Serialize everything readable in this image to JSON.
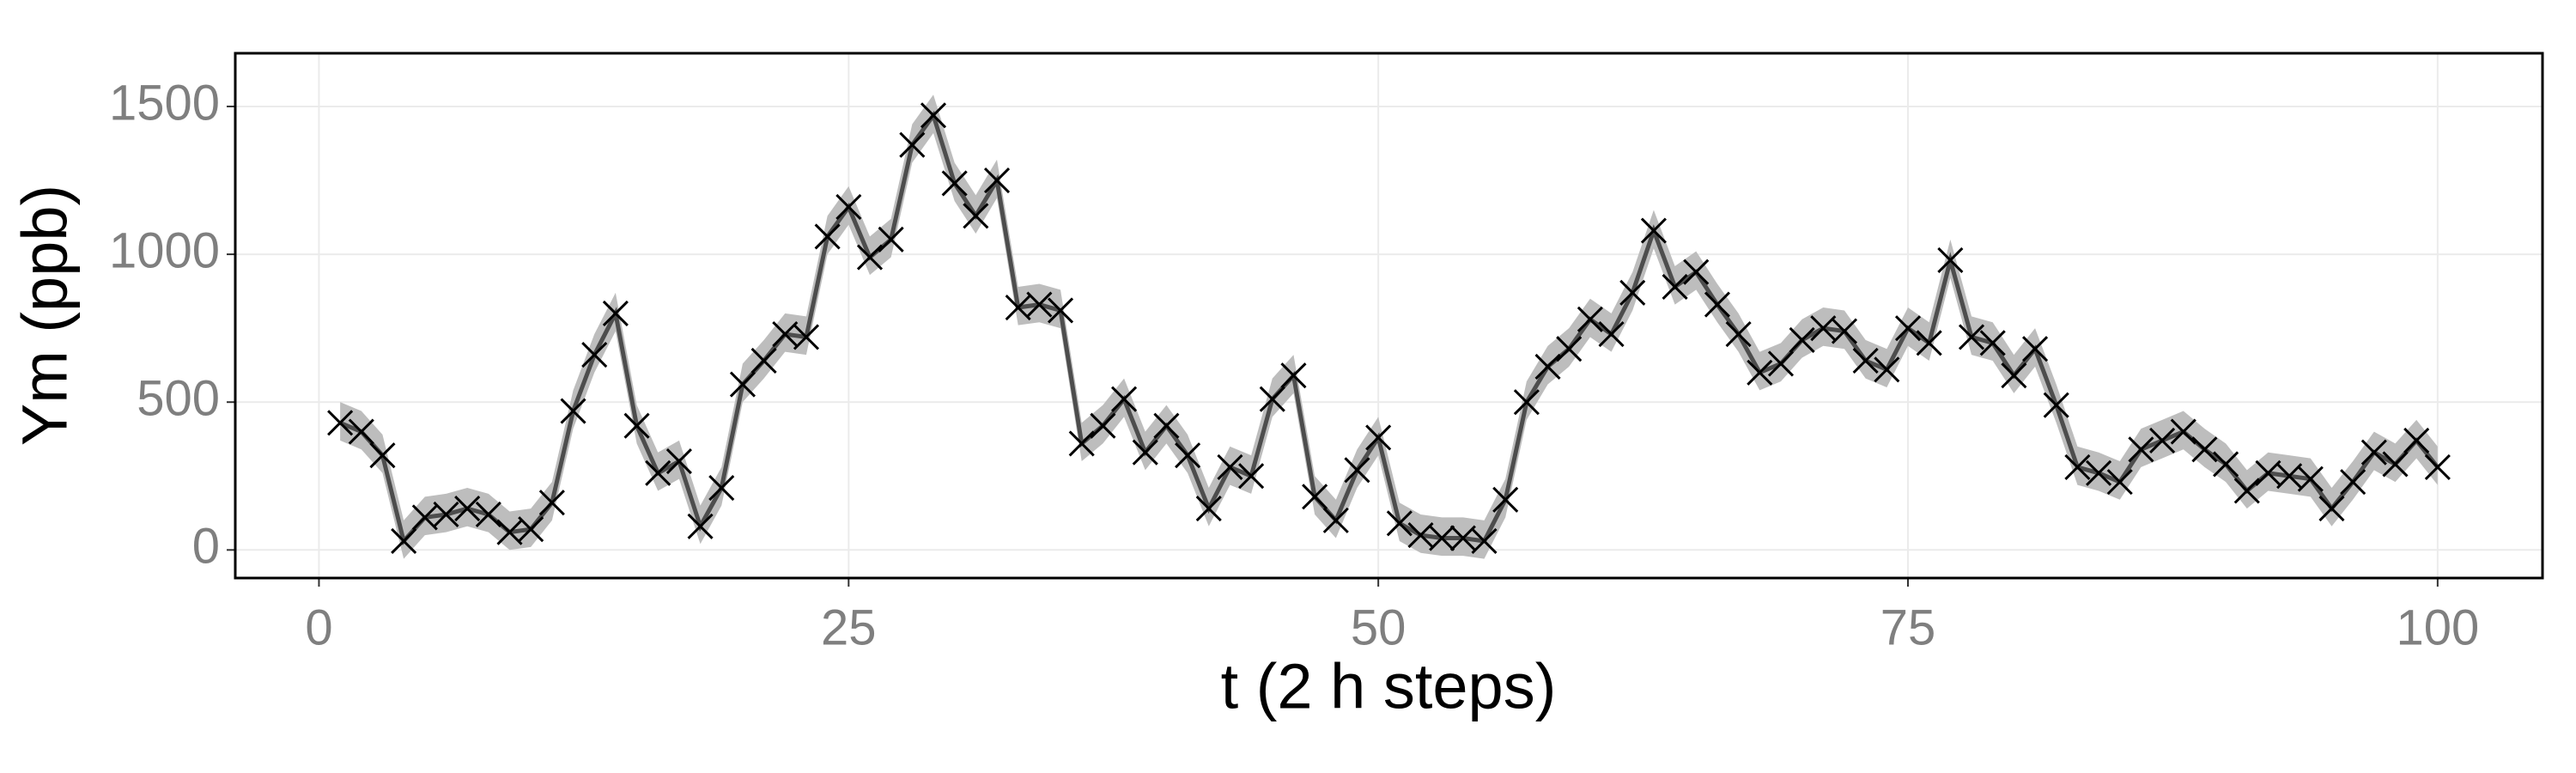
{
  "chart_data": {
    "type": "line",
    "x_label": "t (2 h steps)",
    "y_label": "Ym (ppb)",
    "x": [
      1,
      2,
      3,
      4,
      5,
      6,
      7,
      8,
      9,
      10,
      11,
      12,
      13,
      14,
      15,
      16,
      17,
      18,
      19,
      20,
      21,
      22,
      23,
      24,
      25,
      26,
      27,
      28,
      29,
      30,
      31,
      32,
      33,
      34,
      35,
      36,
      37,
      38,
      39,
      40,
      41,
      42,
      43,
      44,
      45,
      46,
      47,
      48,
      49,
      50,
      51,
      52,
      53,
      54,
      55,
      56,
      57,
      58,
      59,
      60,
      61,
      62,
      63,
      64,
      65,
      66,
      67,
      68,
      69,
      70,
      71,
      72,
      73,
      74,
      75,
      76,
      77,
      78,
      79,
      80,
      81,
      82,
      83,
      84,
      85,
      86,
      87,
      88,
      89,
      90,
      91,
      92,
      93,
      94,
      95,
      96,
      97,
      98,
      99,
      100
    ],
    "values": [
      430,
      400,
      320,
      30,
      110,
      120,
      140,
      120,
      60,
      70,
      160,
      470,
      660,
      800,
      420,
      260,
      300,
      80,
      210,
      560,
      640,
      730,
      720,
      1060,
      1160,
      990,
      1050,
      1370,
      1470,
      1240,
      1130,
      1250,
      820,
      830,
      810,
      360,
      420,
      510,
      330,
      420,
      320,
      140,
      280,
      250,
      510,
      590,
      180,
      100,
      270,
      380,
      90,
      50,
      40,
      40,
      30,
      170,
      500,
      620,
      680,
      780,
      730,
      870,
      1080,
      890,
      940,
      830,
      730,
      600,
      630,
      710,
      750,
      740,
      640,
      610,
      750,
      700,
      980,
      720,
      700,
      590,
      680,
      490,
      280,
      260,
      230,
      340,
      370,
      400,
      340,
      290,
      200,
      260,
      250,
      240,
      140,
      230,
      330,
      290,
      370,
      280
    ],
    "lower": [
      370,
      340,
      260,
      -30,
      50,
      60,
      80,
      60,
      0,
      10,
      100,
      410,
      600,
      740,
      360,
      200,
      240,
      20,
      150,
      500,
      580,
      670,
      660,
      1000,
      1100,
      930,
      990,
      1310,
      1410,
      1180,
      1070,
      1190,
      760,
      770,
      750,
      300,
      360,
      450,
      270,
      360,
      260,
      80,
      220,
      190,
      450,
      530,
      120,
      40,
      210,
      320,
      30,
      -10,
      -20,
      -20,
      -30,
      110,
      440,
      560,
      620,
      720,
      670,
      810,
      1020,
      830,
      880,
      770,
      670,
      540,
      570,
      650,
      690,
      680,
      580,
      550,
      690,
      640,
      920,
      660,
      640,
      530,
      620,
      430,
      220,
      200,
      170,
      280,
      310,
      340,
      280,
      230,
      140,
      200,
      190,
      180,
      80,
      170,
      270,
      230,
      310,
      220
    ],
    "upper": [
      500,
      470,
      390,
      100,
      180,
      190,
      210,
      190,
      130,
      140,
      230,
      540,
      730,
      870,
      490,
      330,
      370,
      150,
      280,
      630,
      710,
      800,
      790,
      1130,
      1230,
      1060,
      1120,
      1440,
      1540,
      1310,
      1200,
      1320,
      890,
      900,
      880,
      430,
      490,
      580,
      400,
      490,
      390,
      210,
      350,
      320,
      580,
      660,
      250,
      170,
      340,
      450,
      160,
      120,
      110,
      110,
      100,
      240,
      570,
      690,
      750,
      850,
      800,
      940,
      1150,
      960,
      1010,
      900,
      800,
      670,
      700,
      780,
      820,
      810,
      710,
      680,
      820,
      770,
      1050,
      790,
      770,
      660,
      750,
      560,
      350,
      330,
      300,
      410,
      440,
      470,
      410,
      360,
      270,
      330,
      320,
      310,
      210,
      300,
      400,
      360,
      440,
      350
    ],
    "line_color": "#4d4d4d",
    "band_color": "#bdbdbd",
    "marker_color": "#000000",
    "xlim": [
      -3.95,
      104.95
    ],
    "ylim": [
      -95,
      1680
    ],
    "xticks": [
      0,
      25,
      50,
      75,
      100
    ],
    "yticks": [
      0,
      500,
      1000,
      1500
    ],
    "grid": true
  }
}
